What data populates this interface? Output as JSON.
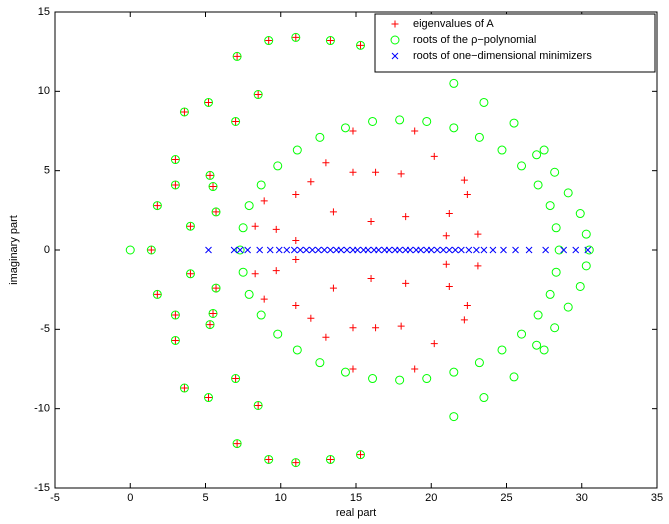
{
  "chart_data": {
    "type": "scatter",
    "xlabel": "real part",
    "ylabel": "imaginary part",
    "xlim": [
      -5,
      35
    ],
    "xticks": [
      -5,
      0,
      5,
      10,
      15,
      20,
      25,
      30,
      35
    ],
    "ylim": [
      -15,
      15
    ],
    "yticks": [
      -15,
      -10,
      -5,
      0,
      5,
      10,
      15
    ],
    "legend": "upper right",
    "series": [
      {
        "name": "eigenvalues of A",
        "color": "#ff0000",
        "marker": "plus",
        "x": [
          11.0,
          9.2,
          13.3,
          15.3,
          7.1,
          3.6,
          5.2,
          7.0,
          8.5,
          3.0,
          1.8,
          3.0,
          4.0,
          5.3,
          5.5,
          5.7,
          20.2,
          18.0,
          16.3,
          14.8,
          12.0,
          13.0,
          11.0,
          13.5,
          16.0,
          18.3,
          21.2,
          22.4,
          22.2,
          18.9,
          14.8,
          9.7,
          11.0,
          21.0,
          23.1,
          8.3,
          8.9,
          11.0,
          9.2,
          13.3,
          15.3,
          7.1,
          3.6,
          5.2,
          7.0,
          8.5,
          3.0,
          1.8,
          3.0,
          4.0,
          5.3,
          5.5,
          5.7,
          20.2,
          18.0,
          16.3,
          14.8,
          12.0,
          13.0,
          11.0,
          13.5,
          16.0,
          18.3,
          21.2,
          22.4,
          22.2,
          18.9,
          14.8,
          9.7,
          11.0,
          21.0,
          23.1,
          8.3,
          8.9,
          1.4
        ],
        "values": [
          13.4,
          13.2,
          13.2,
          12.9,
          12.2,
          8.7,
          9.3,
          8.1,
          9.8,
          5.7,
          2.8,
          4.1,
          1.5,
          4.7,
          4.0,
          2.4,
          5.9,
          4.8,
          4.9,
          4.9,
          4.3,
          5.5,
          3.5,
          2.4,
          1.8,
          2.1,
          2.3,
          3.5,
          4.4,
          7.5,
          7.5,
          1.3,
          0.6,
          0.9,
          1.0,
          1.5,
          3.1,
          -13.4,
          -13.2,
          -13.2,
          -12.9,
          -12.2,
          -8.7,
          -9.3,
          -8.1,
          -9.8,
          -5.7,
          -2.8,
          -4.1,
          -1.5,
          -4.7,
          -4.0,
          -2.4,
          -5.9,
          -4.8,
          -4.9,
          -4.9,
          -4.3,
          -5.5,
          -3.5,
          -2.4,
          -1.8,
          -2.1,
          -2.3,
          -3.5,
          -4.4,
          -7.5,
          -7.5,
          -1.3,
          -0.6,
          -0.9,
          -1.0,
          -1.5,
          -3.1,
          0
        ]
      },
      {
        "name": "roots of the ρ−polynomial",
        "color": "#00ff00",
        "marker": "circle",
        "x": [
          11.0,
          9.2,
          13.3,
          15.3,
          7.1,
          3.6,
          5.2,
          7.0,
          8.5,
          3.0,
          1.8,
          3.0,
          4.0,
          5.3,
          5.5,
          5.7,
          21.5,
          23.5,
          25.5,
          27.5,
          28.3,
          27.9,
          27.1,
          26.0,
          24.7,
          23.2,
          21.5,
          19.7,
          17.9,
          16.1,
          14.3,
          12.6,
          11.1,
          9.8,
          8.7,
          7.9,
          7.5,
          30.3,
          29.9,
          29.1,
          28.2,
          27.0,
          11.0,
          9.2,
          13.3,
          15.3,
          7.1,
          3.6,
          5.2,
          7.0,
          8.5,
          3.0,
          1.8,
          3.0,
          4.0,
          5.3,
          5.5,
          5.7,
          21.5,
          23.5,
          25.5,
          27.5,
          28.3,
          27.9,
          27.1,
          26.0,
          24.7,
          23.2,
          21.5,
          19.7,
          17.9,
          16.1,
          14.3,
          12.6,
          11.1,
          9.8,
          8.7,
          7.9,
          7.5,
          30.3,
          29.9,
          29.1,
          28.2,
          27.0,
          0,
          1.4,
          28.5,
          7.3,
          30.5
        ],
        "values": [
          13.4,
          13.2,
          13.2,
          12.9,
          12.2,
          8.7,
          9.3,
          8.1,
          9.8,
          5.7,
          2.8,
          4.1,
          1.5,
          4.7,
          4.0,
          2.4,
          10.5,
          9.3,
          8.0,
          6.3,
          1.4,
          2.8,
          4.1,
          5.3,
          6.3,
          7.1,
          7.7,
          8.1,
          8.2,
          8.1,
          7.7,
          7.1,
          6.3,
          5.3,
          4.1,
          2.8,
          1.4,
          1.0,
          2.3,
          3.6,
          4.9,
          6.0,
          -13.4,
          -13.2,
          -13.2,
          -12.9,
          -12.2,
          -8.7,
          -9.3,
          -8.1,
          -9.8,
          -5.7,
          -2.8,
          -4.1,
          -1.5,
          -4.7,
          -4.0,
          -2.4,
          -10.5,
          -9.3,
          -8.0,
          -6.3,
          -1.4,
          -2.8,
          -4.1,
          -5.3,
          -6.3,
          -7.1,
          -7.7,
          -8.1,
          -8.2,
          -8.1,
          -7.7,
          -7.1,
          -6.3,
          -5.3,
          -4.1,
          -2.8,
          -1.4,
          -1.0,
          -2.3,
          -3.6,
          -4.9,
          -6.0,
          0,
          0,
          0,
          0,
          0
        ]
      },
      {
        "name": "roots of one−dimensional minimizers",
        "color": "#0000ff",
        "marker": "x",
        "x": [
          5.2,
          6.9,
          7.3,
          7.8,
          8.6,
          9.3,
          9.9,
          10.4,
          10.9,
          11.3,
          11.7,
          12.1,
          12.5,
          12.9,
          13.3,
          13.7,
          14.0,
          14.4,
          14.8,
          15.1,
          15.5,
          15.8,
          16.2,
          16.5,
          16.9,
          17.2,
          17.6,
          17.9,
          18.3,
          18.6,
          19.0,
          19.3,
          19.7,
          20.0,
          20.4,
          20.8,
          21.2,
          21.6,
          22.0,
          22.5,
          23.0,
          23.5,
          24.1,
          24.8,
          25.6,
          26.5,
          27.6,
          28.8,
          29.6,
          30.4
        ],
        "values": [
          0,
          0,
          0,
          0,
          0,
          0,
          0,
          0,
          0,
          0,
          0,
          0,
          0,
          0,
          0,
          0,
          0,
          0,
          0,
          0,
          0,
          0,
          0,
          0,
          0,
          0,
          0,
          0,
          0,
          0,
          0,
          0,
          0,
          0,
          0,
          0,
          0,
          0,
          0,
          0,
          0,
          0,
          0,
          0,
          0,
          0,
          0,
          0,
          0,
          0
        ]
      }
    ]
  }
}
